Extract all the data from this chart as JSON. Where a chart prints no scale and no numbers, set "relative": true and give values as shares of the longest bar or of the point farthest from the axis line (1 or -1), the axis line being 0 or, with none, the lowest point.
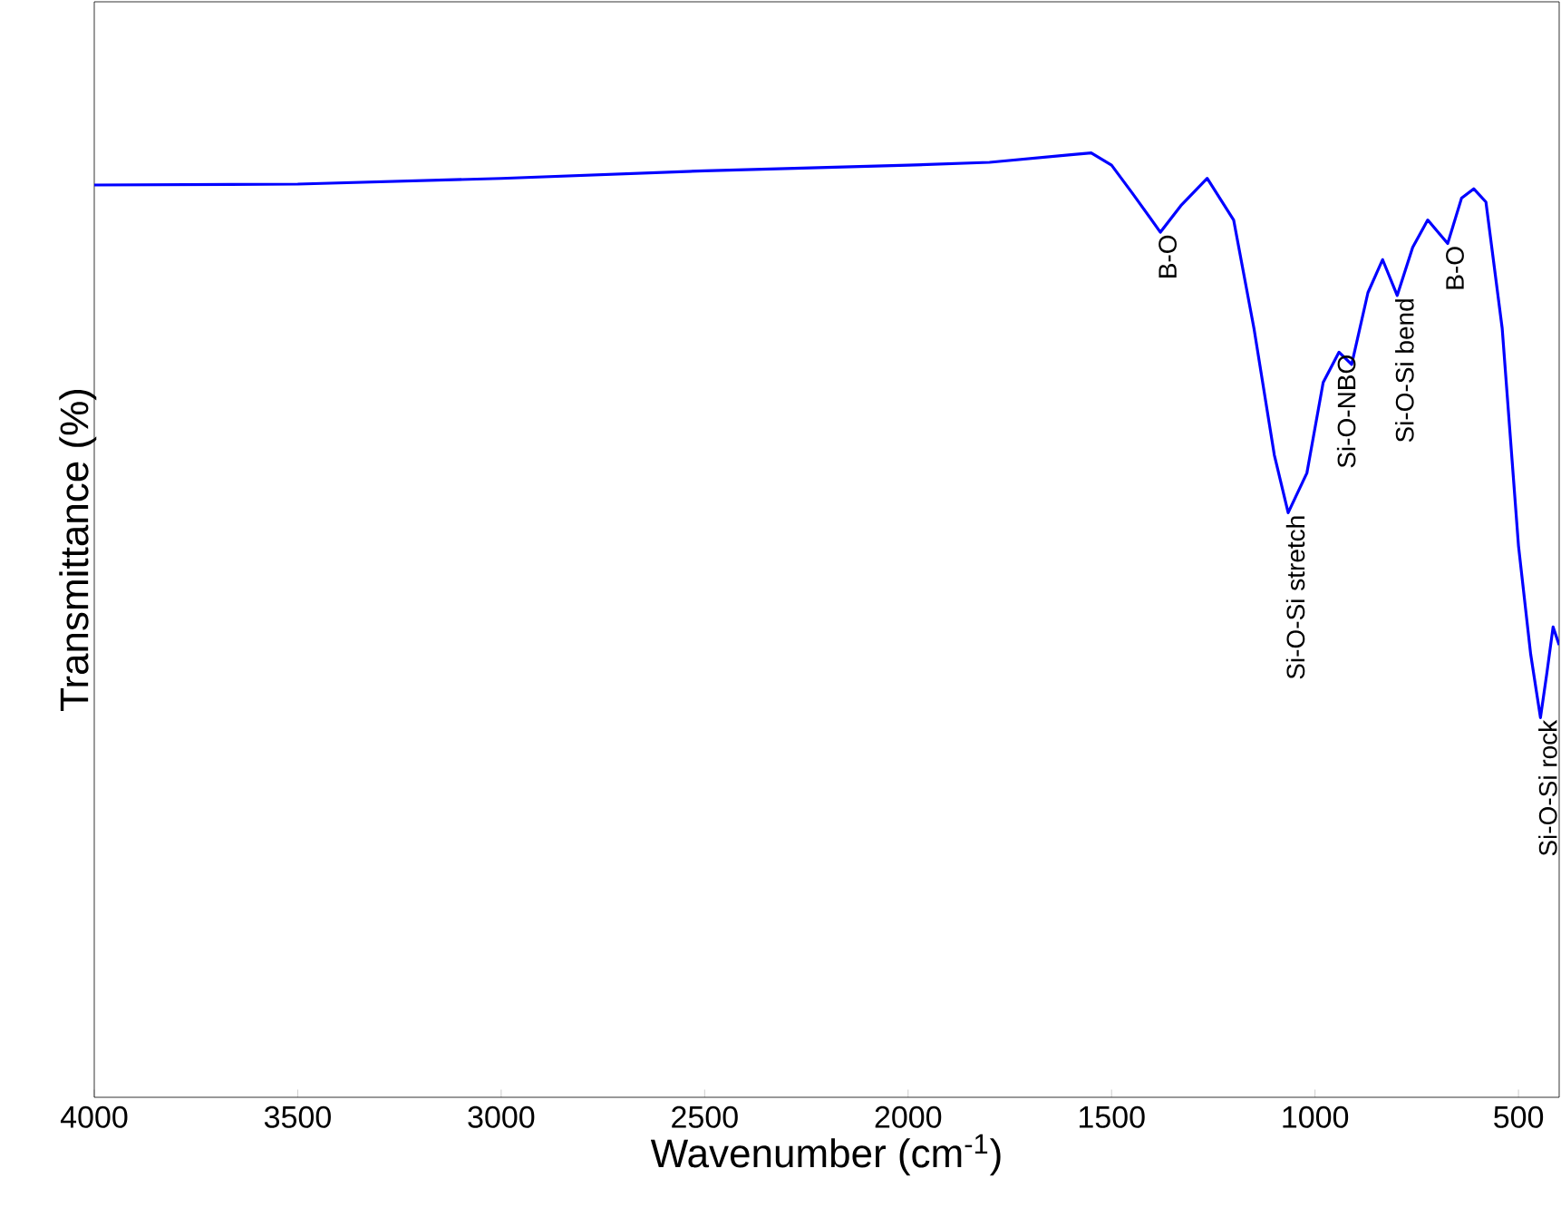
{
  "chart_data": {
    "type": "line",
    "xlabel": "Wavenumber (cm$^{-1}$)",
    "ylabel": "Transmittance (%)",
    "relative": true,
    "xlim": [
      4000,
      400
    ],
    "xticks": [
      4000,
      3500,
      3000,
      2500,
      2000,
      1500,
      1000,
      500
    ],
    "x": [
      4000,
      3500,
      3000,
      2500,
      2000,
      1800,
      1600,
      1550,
      1500,
      1450,
      1380,
      1330,
      1265,
      1200,
      1150,
      1100,
      1066,
      1020,
      980,
      941,
      910,
      870,
      834,
      798,
      760,
      723,
      674,
      640,
      610,
      580,
      540,
      500,
      470,
      446,
      430,
      415,
      400
    ],
    "series": [
      {
        "color": "#0000ff",
        "values": [
          0.966,
          0.967,
          0.973,
          0.981,
          0.987,
          0.99,
          0.998,
          1.0,
          0.987,
          0.958,
          0.916,
          0.944,
          0.973,
          0.929,
          0.814,
          0.68,
          0.619,
          0.661,
          0.757,
          0.789,
          0.776,
          0.852,
          0.887,
          0.849,
          0.9,
          0.929,
          0.904,
          0.952,
          0.962,
          0.948,
          0.814,
          0.584,
          0.469,
          0.402,
          0.45,
          0.498,
          0.479
        ]
      }
    ],
    "marker": "none",
    "line_style": "solid",
    "annotations": [
      {
        "text": "B-O",
        "x": 1380,
        "y": 0.916
      },
      {
        "text": "Si-O-Si stretch",
        "x": 1066,
        "y": 0.619
      },
      {
        "text": "Si-O-NBO",
        "x": 941,
        "y": 0.789
      },
      {
        "text": "Si-O-Si bend",
        "x": 798,
        "y": 0.849
      },
      {
        "text": "B-O",
        "x": 674,
        "y": 0.904
      },
      {
        "text": "Si-O-Si rock",
        "x": 446,
        "y": 0.402
      }
    ]
  }
}
